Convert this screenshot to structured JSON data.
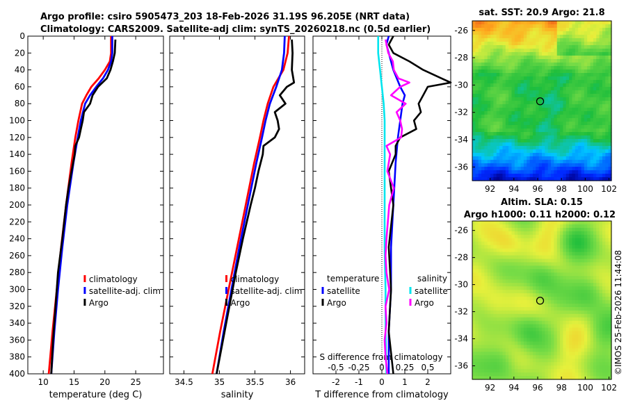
{
  "header": {
    "line1": "Argo profile: csiro 5905473_203 18-Feb-2026 31.19S 96.205E (NRT data)",
    "line2": "Climatology: CARS2009. Satellite-adj clim: synTS_20260218.nc (0.5d earlier)"
  },
  "colors": {
    "clim": "#ff0000",
    "sat": "#0000ff",
    "argo": "#000000",
    "sat_s": "#00e5ee",
    "argo_s": "#ff00ff"
  },
  "chart_data": [
    {
      "type": "line",
      "id": "temperature",
      "xlabel": "temperature (deg C)",
      "xlim": [
        7.5,
        29.5
      ],
      "xticks": [
        "10",
        "15",
        "20",
        "25"
      ],
      "ylim": [
        400,
        0
      ],
      "yticks": [
        "0",
        "20",
        "40",
        "60",
        "80",
        "100",
        "120",
        "140",
        "160",
        "180",
        "200",
        "220",
        "240",
        "260",
        "280",
        "300",
        "320",
        "340",
        "360",
        "380",
        "400"
      ],
      "legend": [
        "climatology",
        "satellite-adj. clim",
        "Argo"
      ],
      "series": [
        {
          "name": "climatology",
          "depth": [
            0,
            20,
            30,
            40,
            50,
            60,
            70,
            80,
            100,
            120,
            150,
            200,
            250,
            300,
            350,
            400
          ],
          "values": [
            21.0,
            21.0,
            20.8,
            20.0,
            19.0,
            17.8,
            17.0,
            16.3,
            15.7,
            15.2,
            14.6,
            13.7,
            12.9,
            12.2,
            11.5,
            10.9
          ]
        },
        {
          "name": "satellite-adj. clim",
          "depth": [
            0,
            20,
            30,
            40,
            50,
            60,
            70,
            80,
            100,
            120,
            150,
            200,
            250,
            300,
            350,
            400
          ],
          "values": [
            21.2,
            21.2,
            21.0,
            20.5,
            19.7,
            18.6,
            17.6,
            16.8,
            16.1,
            15.6,
            14.9,
            13.9,
            13.1,
            12.4,
            11.8,
            11.3
          ]
        },
        {
          "name": "Argo",
          "depth": [
            4,
            20,
            30,
            40,
            50,
            60,
            70,
            80,
            90,
            100,
            110,
            120,
            130,
            140,
            160,
            180,
            200,
            240,
            280,
            320,
            360,
            400
          ],
          "values": [
            21.7,
            21.6,
            21.3,
            20.9,
            20.3,
            18.9,
            18.0,
            17.6,
            16.6,
            16.4,
            16.1,
            15.8,
            15.2,
            15.1,
            14.6,
            14.1,
            13.7,
            13.1,
            12.4,
            12.0,
            11.6,
            11.3
          ]
        }
      ]
    },
    {
      "type": "line",
      "id": "salinity",
      "xlabel": "salinity",
      "xlim": [
        34.3,
        36.2
      ],
      "xticks": [
        "34.5",
        "35",
        "35.5",
        "36"
      ],
      "ylim": [
        400,
        0
      ],
      "legend": [
        "climatology",
        "satellite-adj. clim",
        "Argo"
      ],
      "series": [
        {
          "name": "climatology",
          "depth": [
            0,
            20,
            40,
            60,
            80,
            100,
            120,
            150,
            200,
            250,
            300,
            350,
            400
          ],
          "values": [
            35.98,
            35.96,
            35.9,
            35.76,
            35.68,
            35.62,
            35.57,
            35.49,
            35.37,
            35.25,
            35.13,
            35.01,
            34.9
          ]
        },
        {
          "name": "satellite-adj. clim",
          "depth": [
            0,
            20,
            40,
            60,
            80,
            100,
            120,
            150,
            200,
            250,
            300,
            350,
            400
          ],
          "values": [
            35.92,
            35.91,
            35.88,
            35.8,
            35.71,
            35.65,
            35.6,
            35.52,
            35.4,
            35.28,
            35.17,
            35.06,
            34.96
          ]
        },
        {
          "name": "Argo",
          "depth": [
            4,
            20,
            40,
            55,
            60,
            70,
            80,
            90,
            100,
            110,
            120,
            130,
            140,
            160,
            180,
            200,
            240,
            280,
            320,
            360,
            400
          ],
          "values": [
            36.02,
            36.03,
            36.02,
            36.05,
            35.95,
            35.85,
            35.93,
            35.78,
            35.82,
            35.84,
            35.78,
            35.62,
            35.61,
            35.55,
            35.5,
            35.44,
            35.33,
            35.23,
            35.14,
            35.05,
            34.96
          ]
        }
      ]
    },
    {
      "type": "line",
      "id": "difference",
      "xlabel": "T difference from climatology",
      "xlabel_top": "S difference from climatology",
      "xlim": [
        -3.0,
        3.0
      ],
      "xticks": [
        "-2",
        "-1",
        "0",
        "1",
        "2"
      ],
      "sticks": [
        "-0.5",
        "-0.25",
        "0",
        "0.25",
        "0.5"
      ],
      "ylim": [
        400,
        0
      ],
      "legend_t": {
        "title": "temperature",
        "items": [
          "satellite",
          "Argo"
        ]
      },
      "legend_s": {
        "title": "salinity",
        "items": [
          "satellite",
          "Argo"
        ]
      },
      "series": [
        {
          "name": "T satellite",
          "depth": [
            0,
            10,
            20,
            40,
            60,
            70,
            80,
            100,
            120,
            150,
            200,
            250,
            300,
            350,
            400
          ],
          "values": [
            0.3,
            0.2,
            0.3,
            0.5,
            0.8,
            1.0,
            0.9,
            0.8,
            0.7,
            0.6,
            0.5,
            0.4,
            0.4,
            0.3,
            0.3
          ]
        },
        {
          "name": "T Argo",
          "depth": [
            0,
            10,
            20,
            30,
            40,
            50,
            55,
            60,
            70,
            80,
            90,
            100,
            110,
            120,
            130,
            140,
            160,
            200,
            250,
            300,
            350,
            400
          ],
          "values": [
            0.5,
            0.3,
            0.5,
            1.2,
            1.8,
            2.6,
            3.0,
            2.0,
            1.8,
            1.6,
            1.7,
            1.4,
            1.5,
            0.8,
            0.6,
            0.6,
            0.3,
            0.5,
            0.3,
            0.4,
            0.3,
            0.5
          ]
        },
        {
          "name": "S satellite",
          "depth": [
            0,
            20,
            40,
            60,
            80,
            100,
            150,
            200,
            250,
            300,
            350,
            400
          ],
          "values": [
            -0.04,
            -0.04,
            -0.02,
            0.0,
            0.02,
            0.03,
            0.03,
            0.03,
            0.03,
            0.04,
            0.04,
            0.05
          ]
        },
        {
          "name": "S Argo",
          "depth": [
            4,
            20,
            30,
            40,
            50,
            55,
            60,
            70,
            80,
            90,
            100,
            110,
            120,
            130,
            140,
            160,
            180,
            200,
            240,
            260,
            280,
            300,
            320,
            340,
            360,
            380,
            400
          ],
          "values": [
            0.04,
            0.07,
            0.12,
            0.13,
            0.18,
            0.3,
            0.2,
            0.1,
            0.26,
            0.16,
            0.2,
            0.22,
            0.21,
            0.05,
            0.09,
            0.06,
            0.13,
            0.08,
            0.05,
            0.04,
            0.05,
            0.08,
            0.04,
            0.05,
            0.03,
            0.04,
            0.06
          ]
        }
      ]
    },
    {
      "type": "heatmap",
      "id": "sst",
      "title": "sat. SST: 20.9 Argo: 21.8",
      "xlim": [
        90.5,
        102.2
      ],
      "ylim": [
        -37,
        -25.3
      ],
      "xticks": [
        "92",
        "94",
        "96",
        "98",
        "100",
        "102"
      ],
      "yticks": [
        "-26",
        "-28",
        "-30",
        "-32",
        "-34",
        "-36"
      ],
      "marker": [
        96.205,
        -31.19
      ]
    },
    {
      "type": "heatmap",
      "id": "sla",
      "title": "Altim. SLA: 0.15",
      "subtitle": "Argo h1000: 0.11 h2000: 0.12",
      "xlim": [
        90.5,
        102.2
      ],
      "ylim": [
        -37,
        -25.3
      ],
      "xticks": [
        "92",
        "94",
        "96",
        "98",
        "100",
        "102"
      ],
      "yticks": [
        "-26",
        "-28",
        "-30",
        "-32",
        "-34",
        "-36"
      ],
      "marker": [
        96.205,
        -31.19
      ]
    }
  ],
  "footer": {
    "stamp": "©IMOS 25-Feb-2026 11:44:08"
  }
}
